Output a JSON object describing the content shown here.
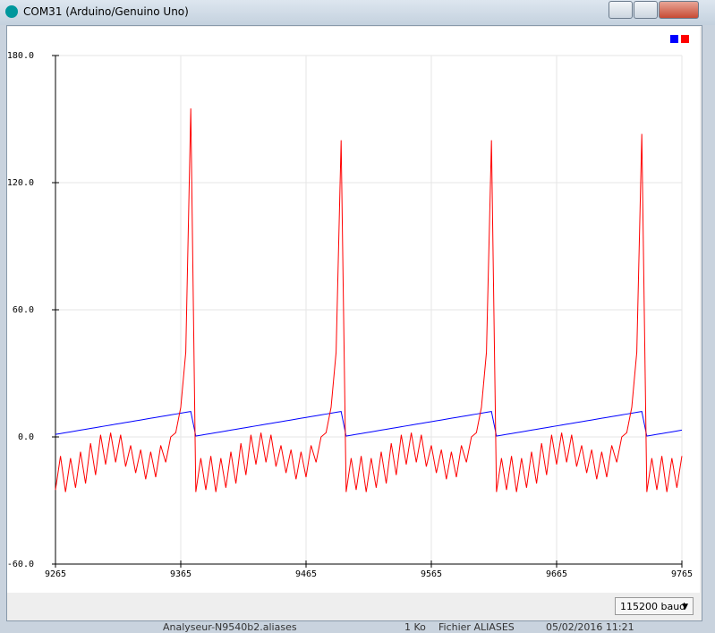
{
  "window": {
    "title": "COM31 (Arduino/Genuino Uno)"
  },
  "footer": {
    "baud": "115200 baud"
  },
  "background": {
    "file": "Analyseur-N9540b2.aliases",
    "size": "1 Ko",
    "kind": "Fichier ALIASES",
    "date": "05/02/2016 11:21"
  },
  "chart_data": {
    "type": "line",
    "x": [
      9265,
      9269,
      9273,
      9277,
      9281,
      9285,
      9289,
      9293,
      9297,
      9301,
      9305,
      9309,
      9313,
      9317,
      9321,
      9325,
      9329,
      9333,
      9337,
      9341,
      9345,
      9349,
      9353,
      9357,
      9361,
      9365,
      9369,
      9373,
      9377,
      9381,
      9385,
      9389,
      9393,
      9397,
      9401,
      9405,
      9409,
      9413,
      9417,
      9421,
      9425,
      9429,
      9433,
      9437,
      9441,
      9445,
      9449,
      9453,
      9457,
      9461,
      9465,
      9469,
      9473,
      9477,
      9481,
      9485,
      9489,
      9493,
      9497,
      9501,
      9505,
      9509,
      9513,
      9517,
      9521,
      9525,
      9529,
      9533,
      9537,
      9541,
      9545,
      9549,
      9553,
      9557,
      9561,
      9565,
      9569,
      9573,
      9577,
      9581,
      9585,
      9589,
      9593,
      9597,
      9601,
      9605,
      9609,
      9613,
      9617,
      9621,
      9625,
      9629,
      9633,
      9637,
      9641,
      9645,
      9649,
      9653,
      9657,
      9661,
      9665,
      9669,
      9673,
      9677,
      9681,
      9685,
      9689,
      9693,
      9697,
      9701,
      9705,
      9709,
      9713,
      9717,
      9721,
      9725,
      9729,
      9733,
      9737,
      9741,
      9745,
      9749,
      9753,
      9757,
      9761,
      9765
    ],
    "series": [
      {
        "color": "#0000ff",
        "values": [
          1.2,
          1.6,
          2,
          2.4,
          2.8,
          3.2,
          3.6,
          4,
          4.4,
          4.8,
          5.2,
          5.6,
          6,
          6.4,
          6.8,
          7.2,
          7.6,
          8,
          8.4,
          8.8,
          9.2,
          9.6,
          10,
          10.4,
          10.8,
          11.2,
          11.6,
          12,
          0.4,
          0.8,
          1.2,
          1.6,
          2,
          2.4,
          2.8,
          3.2,
          3.6,
          4,
          4.4,
          4.8,
          5.2,
          5.6,
          6,
          6.4,
          6.8,
          7.2,
          7.6,
          8,
          8.4,
          8.8,
          9.2,
          9.6,
          10,
          10.4,
          10.8,
          11.2,
          11.6,
          12,
          0.4,
          0.8,
          1.2,
          1.6,
          2,
          2.4,
          2.8,
          3.2,
          3.6,
          4,
          4.4,
          4.8,
          5.2,
          5.6,
          6,
          6.4,
          6.8,
          7.2,
          7.6,
          8,
          8.4,
          8.8,
          9.2,
          9.6,
          10,
          10.4,
          10.8,
          11.2,
          11.6,
          12,
          0.4,
          0.8,
          1.2,
          1.6,
          2,
          2.4,
          2.8,
          3.2,
          3.6,
          4,
          4.4,
          4.8,
          5.2,
          5.6,
          6,
          6.4,
          6.8,
          7.2,
          7.6,
          8,
          8.4,
          8.8,
          9.2,
          9.6,
          10,
          10.4,
          10.8,
          11.2,
          11.6,
          12,
          0.4,
          0.8,
          1.2,
          1.6,
          2,
          2.4,
          2.8,
          3.2
        ]
      },
      {
        "color": "#ff0000",
        "values": [
          -25,
          -9,
          -26,
          -10,
          -24,
          -7,
          -22,
          -3,
          -18,
          1,
          -13,
          2,
          -12,
          1,
          -14,
          -4,
          -17,
          -6,
          -20,
          -7,
          -19,
          -4,
          -12,
          0,
          2,
          14,
          40,
          155,
          -26,
          -10,
          -25,
          -9,
          -26,
          -10,
          -24,
          -7,
          -22,
          -3,
          -18,
          1,
          -13,
          2,
          -12,
          1,
          -14,
          -4,
          -17,
          -6,
          -20,
          -7,
          -19,
          -4,
          -12,
          0,
          2,
          14,
          40,
          140,
          -26,
          -10,
          -25,
          -9,
          -26,
          -10,
          -24,
          -7,
          -22,
          -3,
          -18,
          1,
          -13,
          2,
          -12,
          1,
          -14,
          -4,
          -17,
          -6,
          -20,
          -7,
          -19,
          -4,
          -12,
          0,
          2,
          14,
          40,
          140,
          -26,
          -10,
          -25,
          -9,
          -26,
          -10,
          -24,
          -7,
          -22,
          -3,
          -18,
          1,
          -13,
          2,
          -12,
          1,
          -14,
          -4,
          -17,
          -6,
          -20,
          -7,
          -19,
          -4,
          -12,
          0,
          2,
          14,
          40,
          143,
          -26,
          -10,
          -25,
          -9,
          -26,
          -10,
          -24,
          -9
        ]
      }
    ],
    "xlim": [
      9265,
      9765
    ],
    "xticks": [
      9265,
      9365,
      9465,
      9565,
      9665,
      9765
    ],
    "ylim": [
      -60,
      180
    ],
    "yticks": [
      {
        "value": -60,
        "label": "-60.0"
      },
      {
        "value": 0,
        "label": "0.0"
      },
      {
        "value": 60,
        "label": "60.0"
      },
      {
        "value": 120,
        "label": "120.0"
      },
      {
        "value": 180,
        "label": "180.0"
      }
    ],
    "grid": true
  }
}
